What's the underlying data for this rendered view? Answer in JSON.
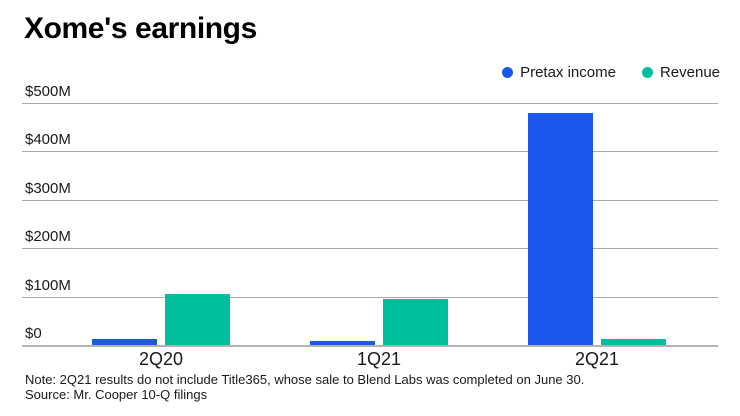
{
  "title": "Xome's earnings",
  "legend": {
    "items": [
      {
        "label": "Pretax income",
        "color": "#1A58EC"
      },
      {
        "label": "Revenue",
        "color": "#00BF9C"
      }
    ]
  },
  "chart_data": {
    "type": "bar",
    "title": "Xome's earnings",
    "categories": [
      "2Q20",
      "1Q21",
      "2Q21"
    ],
    "series": [
      {
        "name": "Pretax income",
        "color": "#1A58EC",
        "values": [
          12,
          8,
          480
        ]
      },
      {
        "name": "Revenue",
        "color": "#00BF9C",
        "values": [
          105,
          95,
          12
        ]
      }
    ],
    "ylim": [
      0,
      500
    ],
    "ytick_values": [
      0,
      100,
      200,
      300,
      400,
      500
    ],
    "ytick_labels": [
      "$0",
      "$100M",
      "$200M",
      "$300M",
      "$400M",
      "$500M"
    ],
    "grid": true,
    "legend_position": "top-right"
  },
  "footer": {
    "note": "Note: 2Q21 results do not include Title365, whose sale to Blend Labs was completed on June 30.",
    "source": "Source: Mr. Cooper 10-Q filings"
  }
}
